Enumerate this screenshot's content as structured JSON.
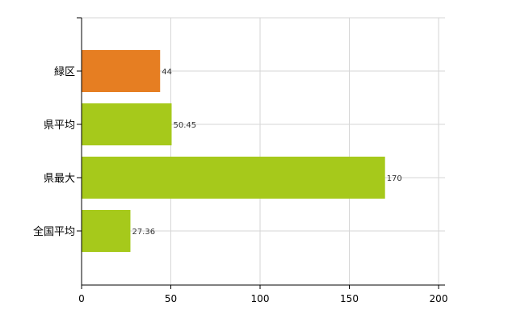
{
  "chart_data": {
    "type": "bar",
    "orientation": "horizontal",
    "categories": [
      "緑区",
      "県平均",
      "県最大",
      "全国平均"
    ],
    "values": [
      44,
      50.45,
      170,
      27.36
    ],
    "value_labels": [
      "44",
      "50.45",
      "170",
      "27.36"
    ],
    "bar_colors": [
      "#e67e22",
      "#a6c91b",
      "#a6c91b",
      "#a6c91b"
    ],
    "title": "",
    "xlabel": "",
    "ylabel": "",
    "xlim": [
      0,
      200
    ],
    "xticks": [
      0,
      50,
      100,
      150,
      200
    ],
    "xtick_labels": [
      "0",
      "50",
      "100",
      "150",
      "200"
    ],
    "grid": true,
    "legend": "none"
  }
}
